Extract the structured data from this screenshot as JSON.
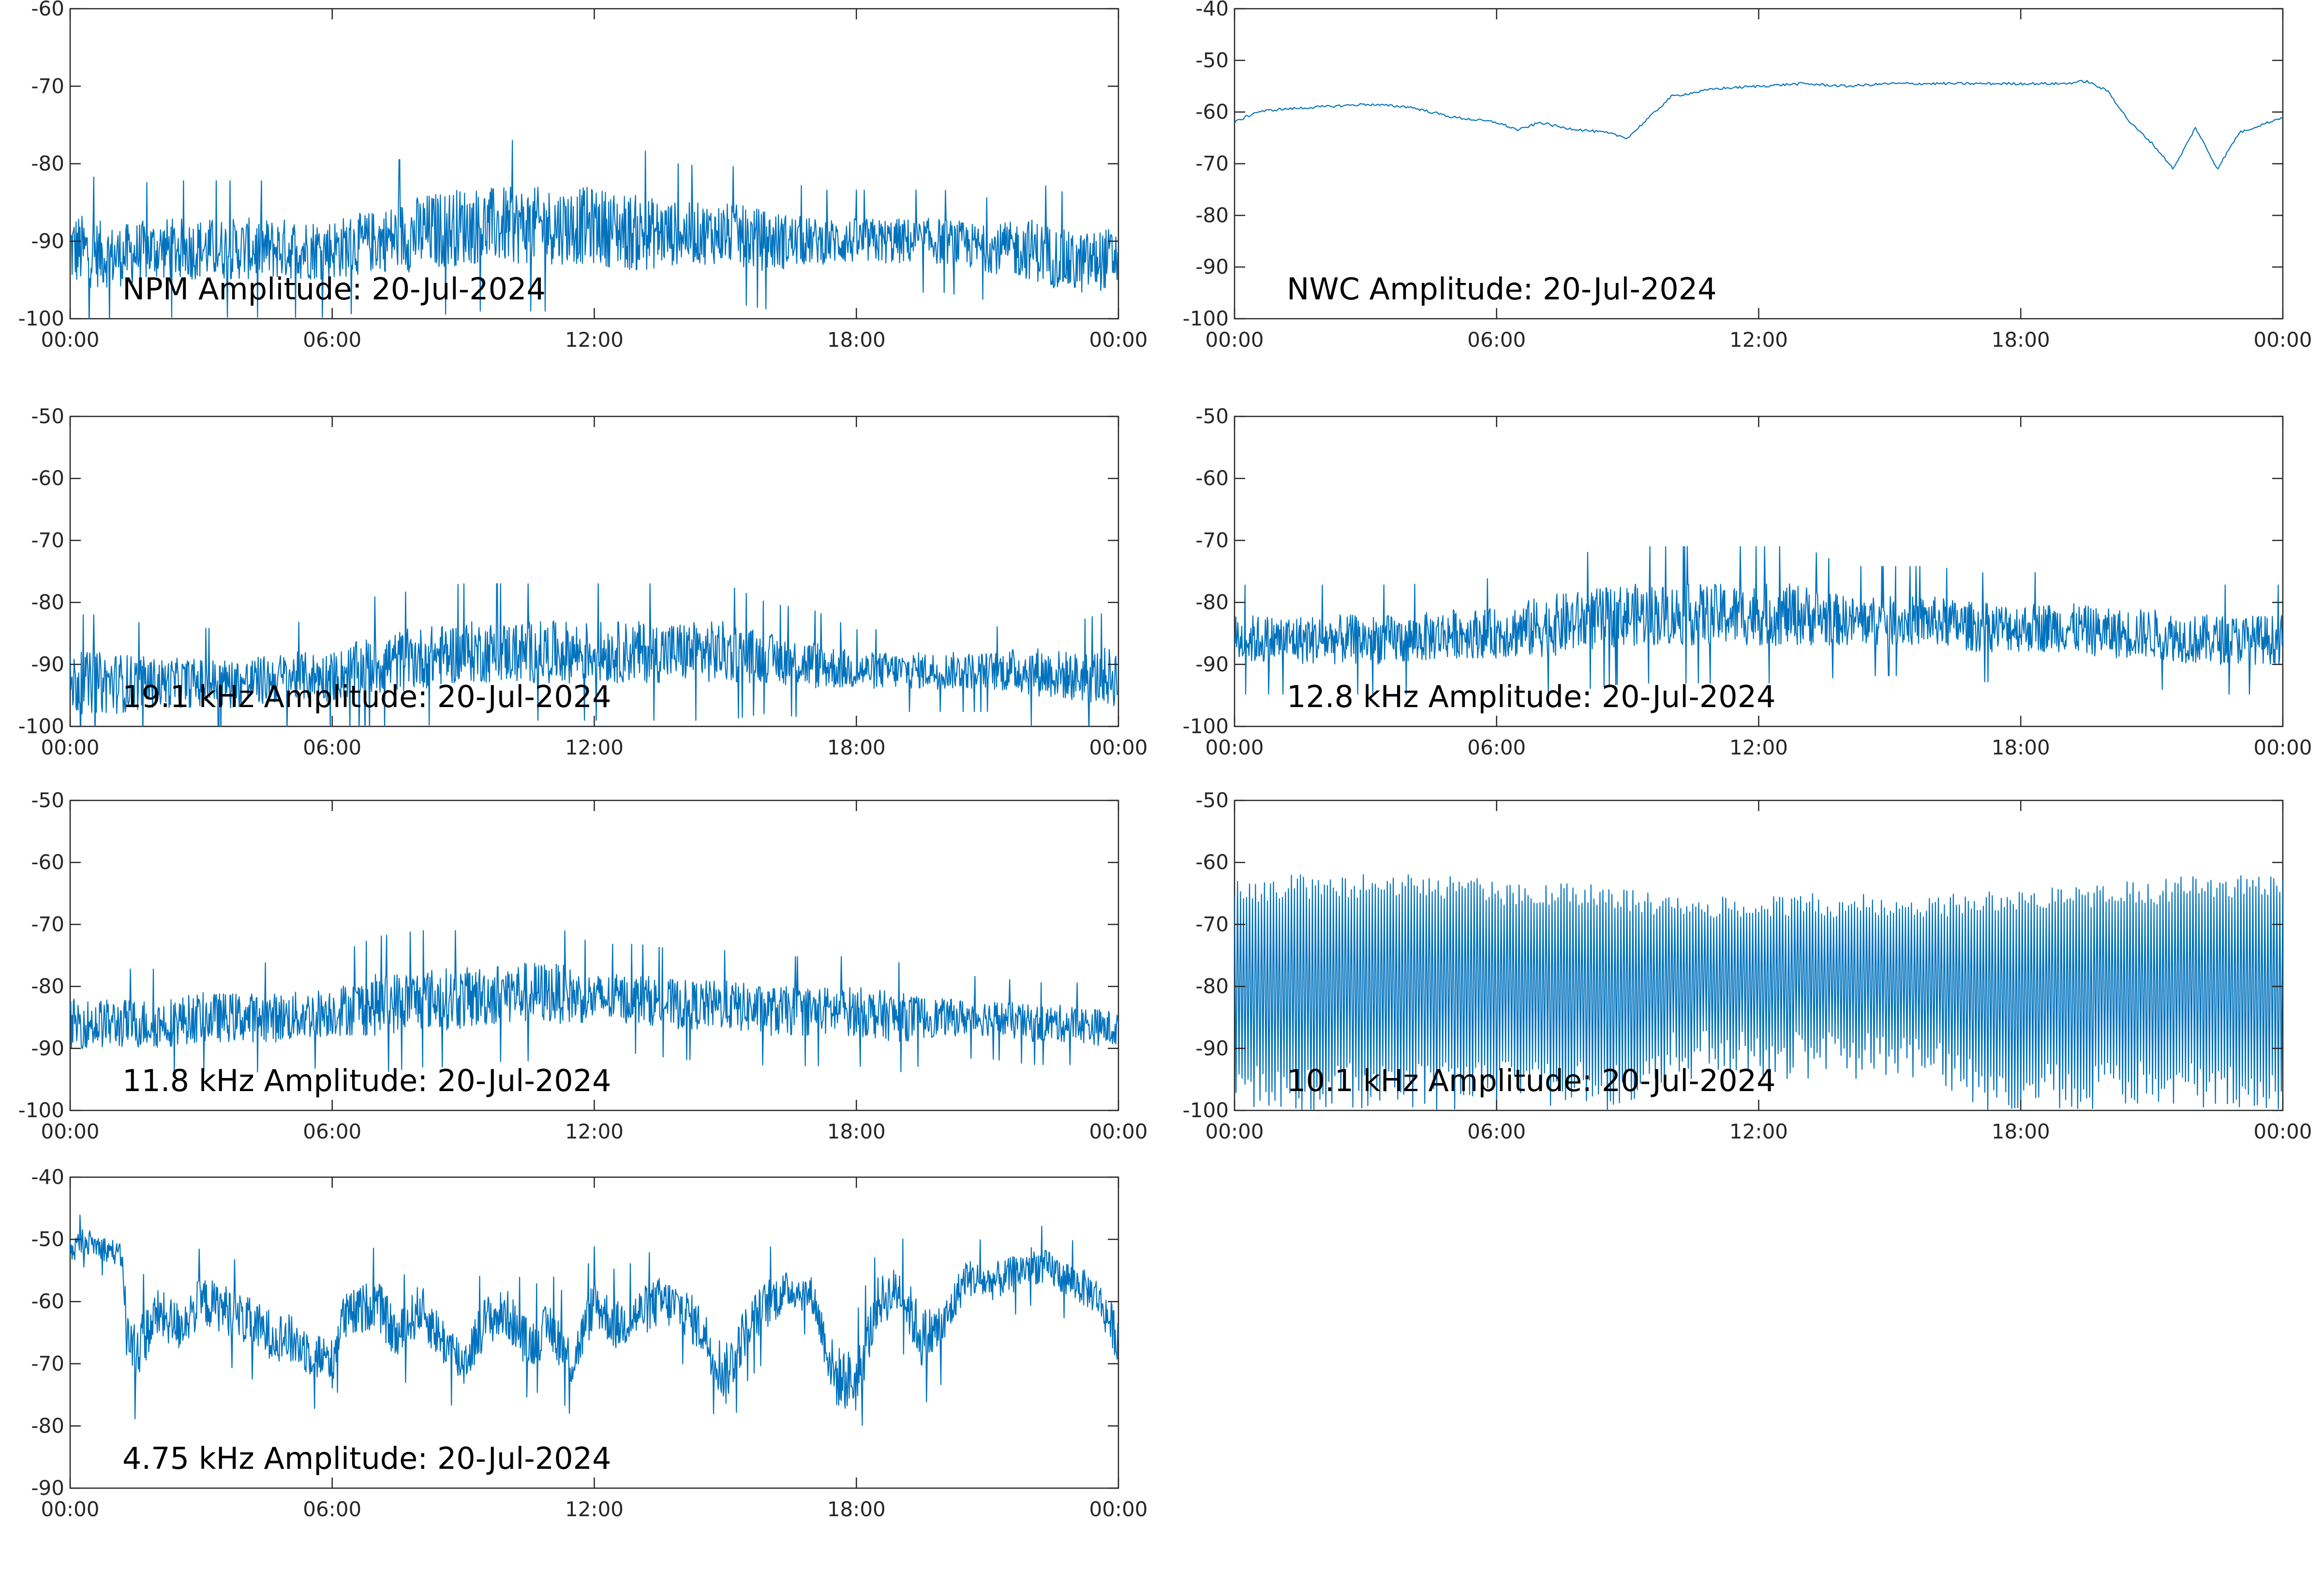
{
  "figure": {
    "trace_color": "#0072BD"
  },
  "chart_data": [
    {
      "type": "line",
      "title": "NPM Amplitude: 20-Jul-2024",
      "xlabel": "",
      "ylabel": "",
      "xticks": [
        "00:00",
        "06:00",
        "12:00",
        "18:00",
        "00:00"
      ],
      "xlim_hours": [
        0,
        24
      ],
      "ylim": [
        -100,
        -60
      ],
      "yticks": [
        -100,
        -90,
        -80,
        -70,
        -60
      ],
      "grid": false,
      "series": [
        {
          "x_hours": [
            0,
            1,
            2,
            3,
            4,
            5,
            6,
            7,
            8,
            9,
            10,
            11,
            12,
            13,
            14,
            15,
            16,
            17,
            18,
            19,
            20,
            21,
            22,
            23,
            24
          ],
          "mean": [
            -91,
            -92,
            -91,
            -91,
            -91,
            -91,
            -91,
            -90,
            -89,
            -88,
            -88,
            -88,
            -88,
            -89,
            -89,
            -89,
            -90,
            -90,
            -90,
            -90,
            -90,
            -91,
            -91,
            -93,
            -92
          ],
          "spread": [
            5,
            4,
            4,
            4,
            4,
            4,
            4,
            4,
            5,
            5,
            5,
            5,
            5,
            5,
            4,
            4,
            4,
            3,
            3,
            3,
            3,
            3,
            4,
            4,
            4
          ]
        }
      ]
    },
    {
      "type": "line",
      "title": "NWC Amplitude: 20-Jul-2024",
      "xlabel": "",
      "ylabel": "",
      "xticks": [
        "00:00",
        "06:00",
        "12:00",
        "18:00",
        "00:00"
      ],
      "xlim_hours": [
        0,
        24
      ],
      "ylim": [
        -100,
        -40
      ],
      "yticks": [
        -100,
        -90,
        -80,
        -70,
        -60,
        -50,
        -40
      ],
      "grid": false,
      "series": [
        {
          "x_hours": [
            0,
            0.5,
            1,
            2,
            3,
            4,
            4.5,
            5,
            6,
            6.5,
            7,
            7.5,
            8,
            8.5,
            9,
            9.5,
            10,
            11,
            12,
            13,
            14,
            15,
            16,
            17,
            18,
            19,
            19.5,
            20,
            20.5,
            21,
            21.5,
            22,
            22.5,
            23,
            24
          ],
          "mean": [
            -62,
            -60,
            -59.5,
            -59,
            -58.5,
            -59,
            -60,
            -61,
            -62,
            -63.5,
            -62,
            -63,
            -63.5,
            -64,
            -65,
            -61,
            -57,
            -55.5,
            -55,
            -54.5,
            -55,
            -54.5,
            -54.5,
            -54.5,
            -54.5,
            -54.5,
            -54,
            -56,
            -62,
            -66,
            -71,
            -63,
            -71,
            -64,
            -61
          ],
          "spread": [
            0.5
          ]
        }
      ]
    },
    {
      "type": "line",
      "title": "19.1 kHz Amplitude: 20-Jul-2024",
      "xlabel": "",
      "ylabel": "",
      "xticks": [
        "00:00",
        "06:00",
        "12:00",
        "18:00",
        "00:00"
      ],
      "xlim_hours": [
        0,
        24
      ],
      "ylim": [
        -100,
        -50
      ],
      "yticks": [
        -100,
        -90,
        -80,
        -70,
        -60,
        -50
      ],
      "grid": false,
      "series": [
        {
          "x_hours": [
            0,
            1,
            2,
            3,
            4,
            5,
            6,
            7,
            8,
            9,
            10,
            11,
            12,
            13,
            14,
            15,
            16,
            17,
            18,
            19,
            20,
            21,
            22,
            23,
            24
          ],
          "mean": [
            -93,
            -93,
            -93,
            -93,
            -93,
            -92,
            -92,
            -90,
            -89,
            -88,
            -88,
            -88,
            -88,
            -88,
            -88,
            -88,
            -89,
            -90,
            -91,
            -91,
            -91,
            -91,
            -91,
            -92,
            -92
          ],
          "spread": [
            5,
            5,
            4,
            4,
            4,
            4,
            4,
            5,
            5,
            5,
            5,
            5,
            5,
            5,
            5,
            5,
            4,
            4,
            3,
            3,
            3,
            3,
            4,
            4,
            5
          ]
        }
      ]
    },
    {
      "type": "line",
      "title": "12.8 kHz Amplitude: 20-Jul-2024",
      "xlabel": "",
      "ylabel": "",
      "xticks": [
        "00:00",
        "06:00",
        "12:00",
        "18:00",
        "00:00"
      ],
      "xlim_hours": [
        0,
        24
      ],
      "ylim": [
        -100,
        -50
      ],
      "yticks": [
        -100,
        -90,
        -80,
        -70,
        -60,
        -50
      ],
      "grid": false,
      "series": [
        {
          "x_hours": [
            0,
            1,
            2,
            3,
            4,
            5,
            6,
            7,
            8,
            9,
            10,
            11,
            12,
            13,
            14,
            15,
            16,
            17,
            18,
            19,
            20,
            21,
            22,
            23,
            24
          ],
          "mean": [
            -86,
            -86,
            -86,
            -86,
            -86,
            -85,
            -85,
            -84,
            -83,
            -82,
            -82,
            -82,
            -82,
            -82,
            -83,
            -83,
            -83,
            -84,
            -84,
            -84,
            -85,
            -85,
            -86,
            -86,
            -86
          ],
          "spread": [
            4,
            4,
            4,
            4,
            4,
            4,
            4,
            5,
            5,
            5,
            5,
            5,
            5,
            5,
            4,
            4,
            4,
            4,
            4,
            4,
            4,
            4,
            4,
            4,
            4
          ]
        }
      ]
    },
    {
      "type": "line",
      "title": "11.8 kHz Amplitude: 20-Jul-2024",
      "xlabel": "",
      "ylabel": "",
      "xticks": [
        "00:00",
        "06:00",
        "12:00",
        "18:00",
        "00:00"
      ],
      "xlim_hours": [
        0,
        24
      ],
      "ylim": [
        -100,
        -50
      ],
      "yticks": [
        -100,
        -90,
        -80,
        -70,
        -60,
        -50
      ],
      "grid": false,
      "series": [
        {
          "x_hours": [
            0,
            1,
            2,
            3,
            4,
            5,
            6,
            7,
            8,
            9,
            10,
            11,
            12,
            13,
            14,
            15,
            16,
            17,
            18,
            19,
            20,
            21,
            22,
            23,
            24
          ],
          "mean": [
            -86,
            -86,
            -86,
            -85,
            -85,
            -85,
            -84,
            -83,
            -82,
            -82,
            -81,
            -81,
            -82,
            -82,
            -83,
            -83,
            -84,
            -84,
            -84,
            -85,
            -85,
            -85,
            -86,
            -86,
            -87
          ],
          "spread": [
            4,
            4,
            4,
            4,
            4,
            4,
            4,
            5,
            5,
            5,
            5,
            5,
            4,
            4,
            4,
            4,
            4,
            4,
            4,
            4,
            3,
            3,
            3,
            3,
            3
          ]
        }
      ]
    },
    {
      "type": "line",
      "title": "10.1 kHz Amplitude: 20-Jul-2024",
      "xlabel": "",
      "ylabel": "",
      "xticks": [
        "00:00",
        "06:00",
        "12:00",
        "18:00",
        "00:00"
      ],
      "xlim_hours": [
        0,
        24
      ],
      "ylim": [
        -100,
        -50
      ],
      "yticks": [
        -100,
        -90,
        -80,
        -70,
        -60,
        -50
      ],
      "grid": false,
      "series": [
        {
          "x_hours": [
            0,
            1,
            2,
            3,
            4,
            5,
            6,
            7,
            8,
            9,
            10,
            11,
            12,
            13,
            14,
            15,
            16,
            17,
            18,
            19,
            20,
            21,
            22,
            23,
            24
          ],
          "top": [
            -65,
            -64,
            -64,
            -64,
            -64,
            -64,
            -65,
            -65,
            -65,
            -66,
            -67,
            -67,
            -67,
            -67,
            -67,
            -67,
            -67,
            -67,
            -66,
            -66,
            -65,
            -65,
            -64,
            -64,
            -64
          ],
          "bottom": [
            -100,
            -100,
            -100,
            -100,
            -100,
            -100,
            -100,
            -100,
            -100,
            -100,
            -95,
            -95,
            -95,
            -95,
            -95,
            -95,
            -95,
            -100,
            -100,
            -100,
            -100,
            -100,
            -100,
            -100,
            -100
          ]
        }
      ]
    },
    {
      "type": "line",
      "title": "4.75 kHz Amplitude: 20-Jul-2024",
      "xlabel": "",
      "ylabel": "",
      "xticks": [
        "00:00",
        "06:00",
        "12:00",
        "18:00",
        "00:00"
      ],
      "xlim_hours": [
        0,
        24
      ],
      "ylim": [
        -90,
        -40
      ],
      "yticks": [
        -90,
        -80,
        -70,
        -60,
        -50,
        -40
      ],
      "grid": false,
      "series": [
        {
          "x_hours": [
            0,
            0.3,
            0.6,
            1,
            1.2,
            1.3,
            1.5,
            2,
            2.5,
            3,
            3.5,
            4,
            4.5,
            5,
            5.5,
            6,
            6.2,
            6.5,
            7,
            7.5,
            8,
            8.5,
            9,
            9.5,
            10,
            10.5,
            11,
            11.5,
            12,
            12.5,
            13,
            13.5,
            14,
            14.5,
            15,
            15.5,
            16,
            16.5,
            17,
            17.5,
            18,
            18.5,
            19,
            19.5,
            20,
            20.5,
            21,
            21.5,
            22,
            22.5,
            23,
            23.5,
            24
          ],
          "mean": [
            -52,
            -50,
            -51,
            -52,
            -53,
            -66,
            -68,
            -62,
            -64,
            -60,
            -61,
            -63,
            -65,
            -66,
            -68,
            -70,
            -63,
            -62,
            -60,
            -66,
            -61,
            -66,
            -70,
            -63,
            -62,
            -67,
            -64,
            -70,
            -60,
            -64,
            -62,
            -60,
            -61,
            -65,
            -72,
            -64,
            -60,
            -58,
            -59,
            -72,
            -73,
            -60,
            -58,
            -66,
            -64,
            -56,
            -57,
            -56,
            -54,
            -55,
            -57,
            -59,
            -66
          ],
          "spread": [
            2,
            2,
            2,
            2,
            2,
            5,
            5,
            4,
            4,
            4,
            4,
            4,
            4,
            4,
            4,
            4,
            4,
            4,
            4,
            4,
            4,
            4,
            4,
            4,
            4,
            4,
            4,
            4,
            4,
            4,
            4,
            4,
            4,
            4,
            5,
            4,
            4,
            3,
            3,
            5,
            5,
            4,
            4,
            5,
            4,
            3,
            3,
            3,
            3,
            3,
            3,
            3,
            4
          ]
        }
      ]
    }
  ]
}
